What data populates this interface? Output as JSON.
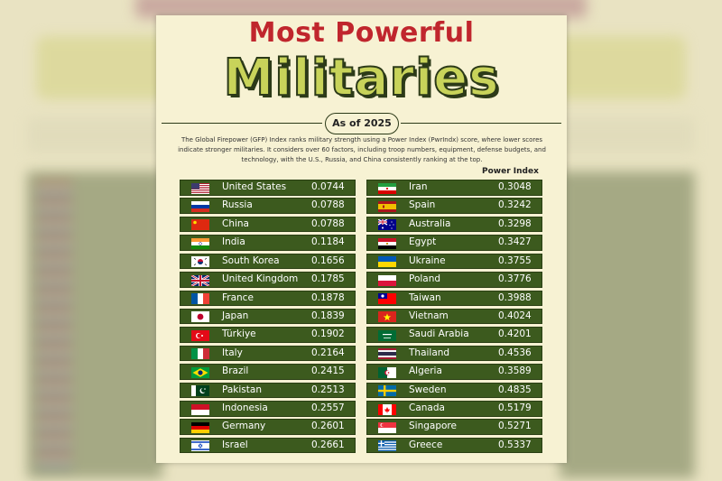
{
  "title_line1": "Most Powerful",
  "title_line2": "Militaries",
  "subtitle": "As of 2025",
  "description": "The Global Firepower (GFP) Index ranks military strength using a Power Index (PwrIndx) score, where lower scores indicate stronger militaries. It considers over 60 factors, including troop numbers, equipment, defense budgets, and technology, with the U.S., Russia, and China consistently ranking at the top.",
  "column_header": "Power Index",
  "colors": {
    "title_red": "#c0262d",
    "title_green": "#c8d35a",
    "row_bg": "#3c5a1e",
    "card_bg": "#f7f2d3"
  },
  "left_rows": [
    {
      "country": "United States",
      "value": "0.0744",
      "flag": "us-flag-icon"
    },
    {
      "country": "Russia",
      "value": "0.0788",
      "flag": "russia-flag-icon"
    },
    {
      "country": "China",
      "value": "0.0788",
      "flag": "china-flag-icon"
    },
    {
      "country": "India",
      "value": "0.1184",
      "flag": "india-flag-icon"
    },
    {
      "country": "South Korea",
      "value": "0.1656",
      "flag": "south-korea-flag-icon"
    },
    {
      "country": "United Kingdom",
      "value": "0.1785",
      "flag": "uk-flag-icon"
    },
    {
      "country": "France",
      "value": "0.1878",
      "flag": "france-flag-icon"
    },
    {
      "country": "Japan",
      "value": "0.1839",
      "flag": "japan-flag-icon"
    },
    {
      "country": "Türkiye",
      "value": "0.1902",
      "flag": "turkey-flag-icon"
    },
    {
      "country": "Italy",
      "value": "0.2164",
      "flag": "italy-flag-icon"
    },
    {
      "country": "Brazil",
      "value": "0.2415",
      "flag": "brazil-flag-icon"
    },
    {
      "country": "Pakistan",
      "value": "0.2513",
      "flag": "pakistan-flag-icon"
    },
    {
      "country": "Indonesia",
      "value": "0.2557",
      "flag": "indonesia-flag-icon"
    },
    {
      "country": "Germany",
      "value": "0.2601",
      "flag": "germany-flag-icon"
    },
    {
      "country": "Israel",
      "value": "0.2661",
      "flag": "israel-flag-icon"
    }
  ],
  "right_rows": [
    {
      "country": "Iran",
      "value": "0.3048",
      "flag": "iran-flag-icon"
    },
    {
      "country": "Spain",
      "value": "0.3242",
      "flag": "spain-flag-icon"
    },
    {
      "country": "Australia",
      "value": "0.3298",
      "flag": "australia-flag-icon"
    },
    {
      "country": "Egypt",
      "value": "0.3427",
      "flag": "egypt-flag-icon"
    },
    {
      "country": "Ukraine",
      "value": "0.3755",
      "flag": "ukraine-flag-icon"
    },
    {
      "country": "Poland",
      "value": "0.3776",
      "flag": "poland-flag-icon"
    },
    {
      "country": "Taiwan",
      "value": "0.3988",
      "flag": "taiwan-flag-icon"
    },
    {
      "country": "Vietnam",
      "value": "0.4024",
      "flag": "vietnam-flag-icon"
    },
    {
      "country": "Saudi Arabia",
      "value": "0.4201",
      "flag": "saudi-arabia-flag-icon"
    },
    {
      "country": "Thailand",
      "value": "0.4536",
      "flag": "thailand-flag-icon"
    },
    {
      "country": "Algeria",
      "value": "0.3589",
      "flag": "algeria-flag-icon"
    },
    {
      "country": "Sweden",
      "value": "0.4835",
      "flag": "sweden-flag-icon"
    },
    {
      "country": "Canada",
      "value": "0.5179",
      "flag": "canada-flag-icon"
    },
    {
      "country": "Singapore",
      "value": "0.5271",
      "flag": "singapore-flag-icon"
    },
    {
      "country": "Greece",
      "value": "0.5337",
      "flag": "greece-flag-icon"
    }
  ]
}
